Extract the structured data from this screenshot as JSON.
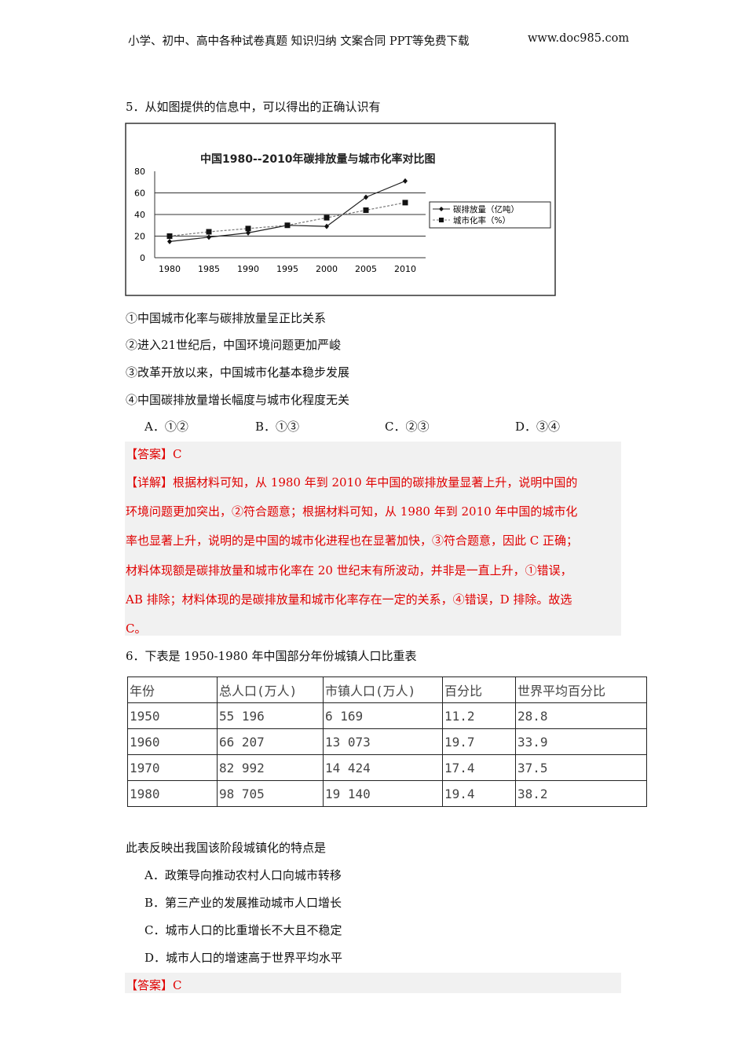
{
  "header": {
    "left": "小学、初中、高中各种试卷真题  知识归纳  文案合同  PPT等免费下载",
    "right": "www.doc985.com"
  },
  "q5": {
    "stem": "5．从如图提供的信息中，可以得出的正确认识有",
    "statements": [
      "①中国城市化率与碳排放量呈正比关系",
      "②进入21世纪后，中国环境问题更加严峻",
      "③改革开放以来，中国城市化基本稳步发展",
      "④中国碳排放量增长幅度与城市化程度无关"
    ],
    "options": [
      "A．①②",
      "B．①③",
      "C．②③",
      "D．③④"
    ],
    "answer": "【答案】C",
    "explain": [
      "【详解】根据材料可知，从 1980 年到 2010 年中国的碳排放量显著上升，说明中国的",
      "环境问题更加突出，②符合题意；根据材料可知，从 1980 年到 2010 年中国的城市化",
      "率也显著上升，说明的是中国的城市化进程也在显著加快，③符合题意，因此 C 正确；",
      "材料体现额是碳排放量和城市化率在 20 世纪末有所波动，并非是一直上升，①错误，",
      "AB 排除；材料体现的是碳排放量和城市化率存在一定的关系，④错误，D 排除。故选",
      "C。"
    ]
  },
  "chart_data": {
    "type": "line",
    "title": "中国1980--2010年碳排放量与城市化率对比图",
    "categories": [
      "1980",
      "1985",
      "1990",
      "1995",
      "2000",
      "2005",
      "2010"
    ],
    "ylim": [
      0,
      80
    ],
    "yticks": [
      "0",
      "20",
      "40",
      "60",
      "80"
    ],
    "grid": true,
    "legend": "right",
    "series": [
      {
        "name": "碳排放量（亿吨）",
        "values": [
          15,
          19,
          23,
          30,
          29,
          56,
          71
        ],
        "marker": "diamond"
      },
      {
        "name": "城市化率（%）",
        "values": [
          20,
          24,
          27,
          30,
          37,
          44,
          51
        ],
        "marker": "square"
      }
    ]
  },
  "q6": {
    "stem": "6．下表是 1950-1980 年中国部分年份城镇人口比重表",
    "table": {
      "headers": [
        "年份",
        "总人口(万人)",
        "市镇人口(万人)",
        "百分比",
        "世界平均百分比"
      ],
      "rows": [
        [
          "1950",
          "55 196",
          "6 169",
          "11.2",
          "28.8"
        ],
        [
          "1960",
          "66 207",
          "13 073",
          "19.7",
          "33.9"
        ],
        [
          "1970",
          "82 992",
          "14 424",
          "17.4",
          "37.5"
        ],
        [
          "1980",
          "98 705",
          "19 140",
          "19.4",
          "38.2"
        ]
      ]
    },
    "question": "此表反映出我国该阶段城镇化的特点是",
    "options": [
      "A．政策导向推动农村人口向城市转移",
      "B．第三产业的发展推动城市人口增长",
      "C．城市人口的比重增长不大且不稳定",
      "D．城市人口的增速高于世界平均水平"
    ],
    "answer": "【答案】C"
  }
}
